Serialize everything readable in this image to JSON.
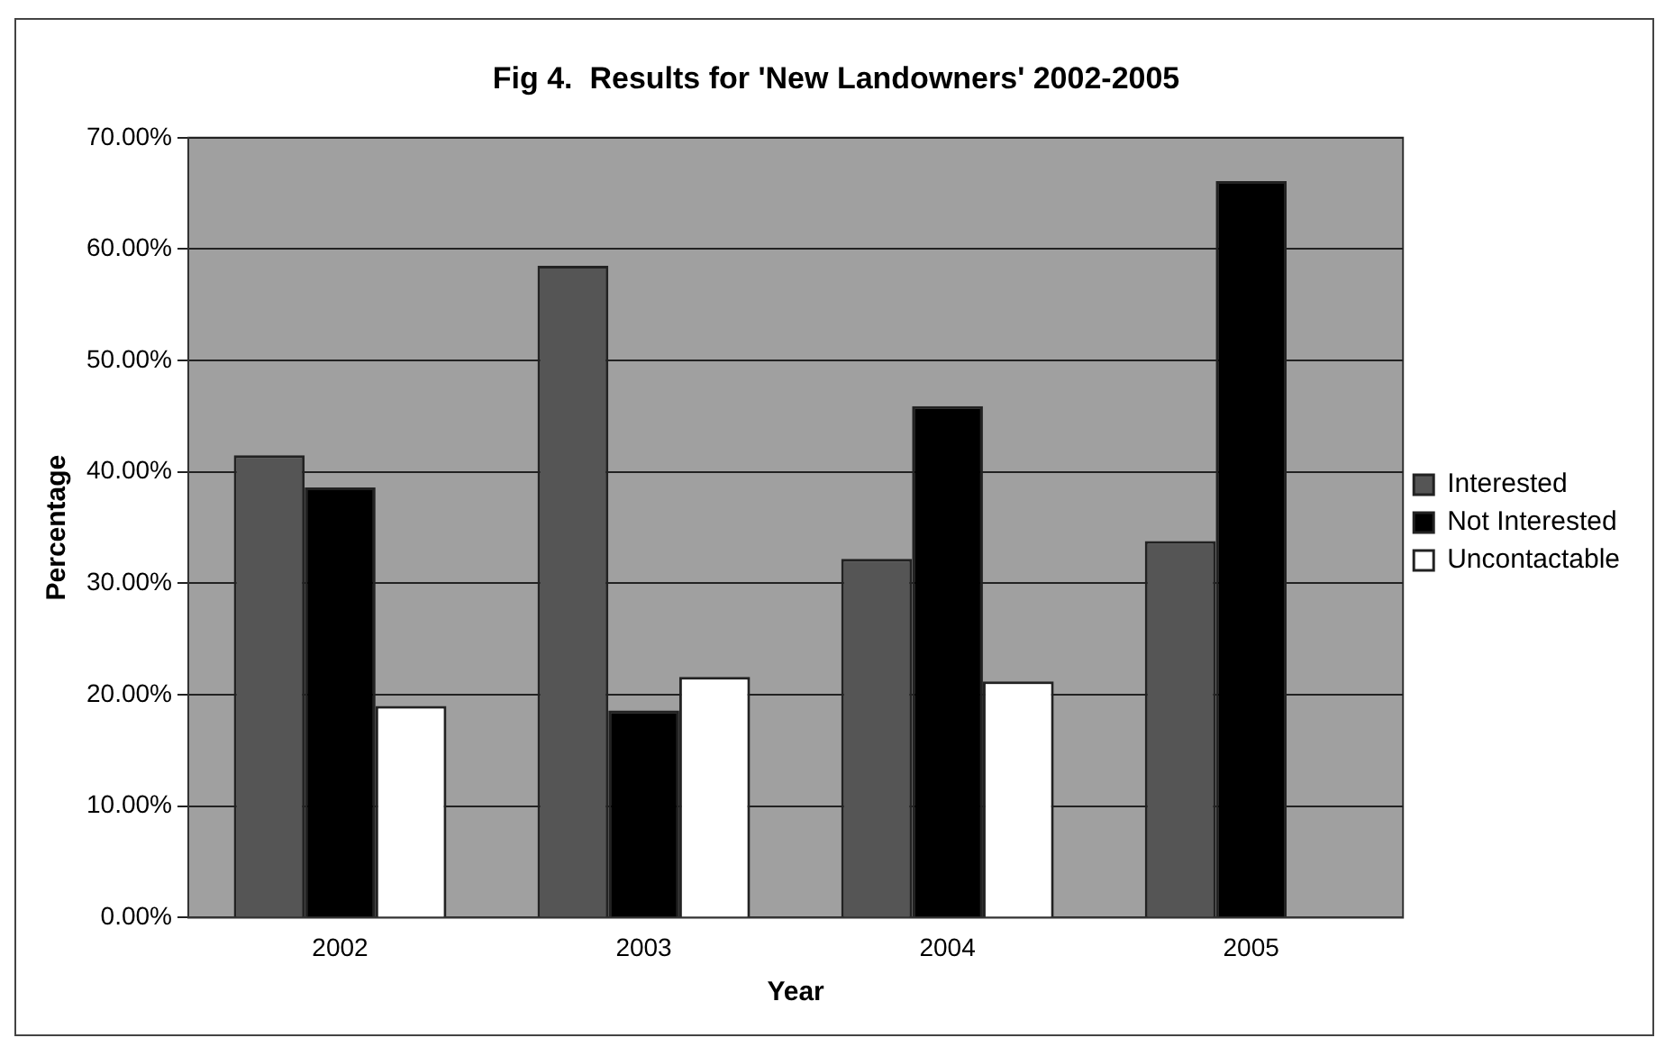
{
  "chart_data": {
    "type": "bar",
    "title": "Fig 4.  Results for 'New Landowners' 2002-2005",
    "xlabel": "Year",
    "ylabel": "Percentage",
    "categories": [
      "2002",
      "2003",
      "2004",
      "2005"
    ],
    "series": [
      {
        "name": "Interested",
        "color": "#555555",
        "values": [
          41.5,
          58.5,
          32.2,
          33.8
        ]
      },
      {
        "name": "Not Interested",
        "color": "#000000",
        "values": [
          38.6,
          18.6,
          45.9,
          66.1
        ]
      },
      {
        "name": "Uncontactable",
        "color": "#ffffff",
        "values": [
          19.0,
          21.6,
          21.2,
          null
        ]
      }
    ],
    "ylim": [
      0,
      70
    ],
    "yticks": [
      {
        "value": 0,
        "label": "0.00%"
      },
      {
        "value": 10,
        "label": "10.00%"
      },
      {
        "value": 20,
        "label": "20.00%"
      },
      {
        "value": 30,
        "label": "30.00%"
      },
      {
        "value": 40,
        "label": "40.00%"
      },
      {
        "value": 50,
        "label": "50.00%"
      },
      {
        "value": 60,
        "label": "60.00%"
      },
      {
        "value": 70,
        "label": "70.00%"
      }
    ],
    "grid": "y",
    "legend": "right"
  }
}
